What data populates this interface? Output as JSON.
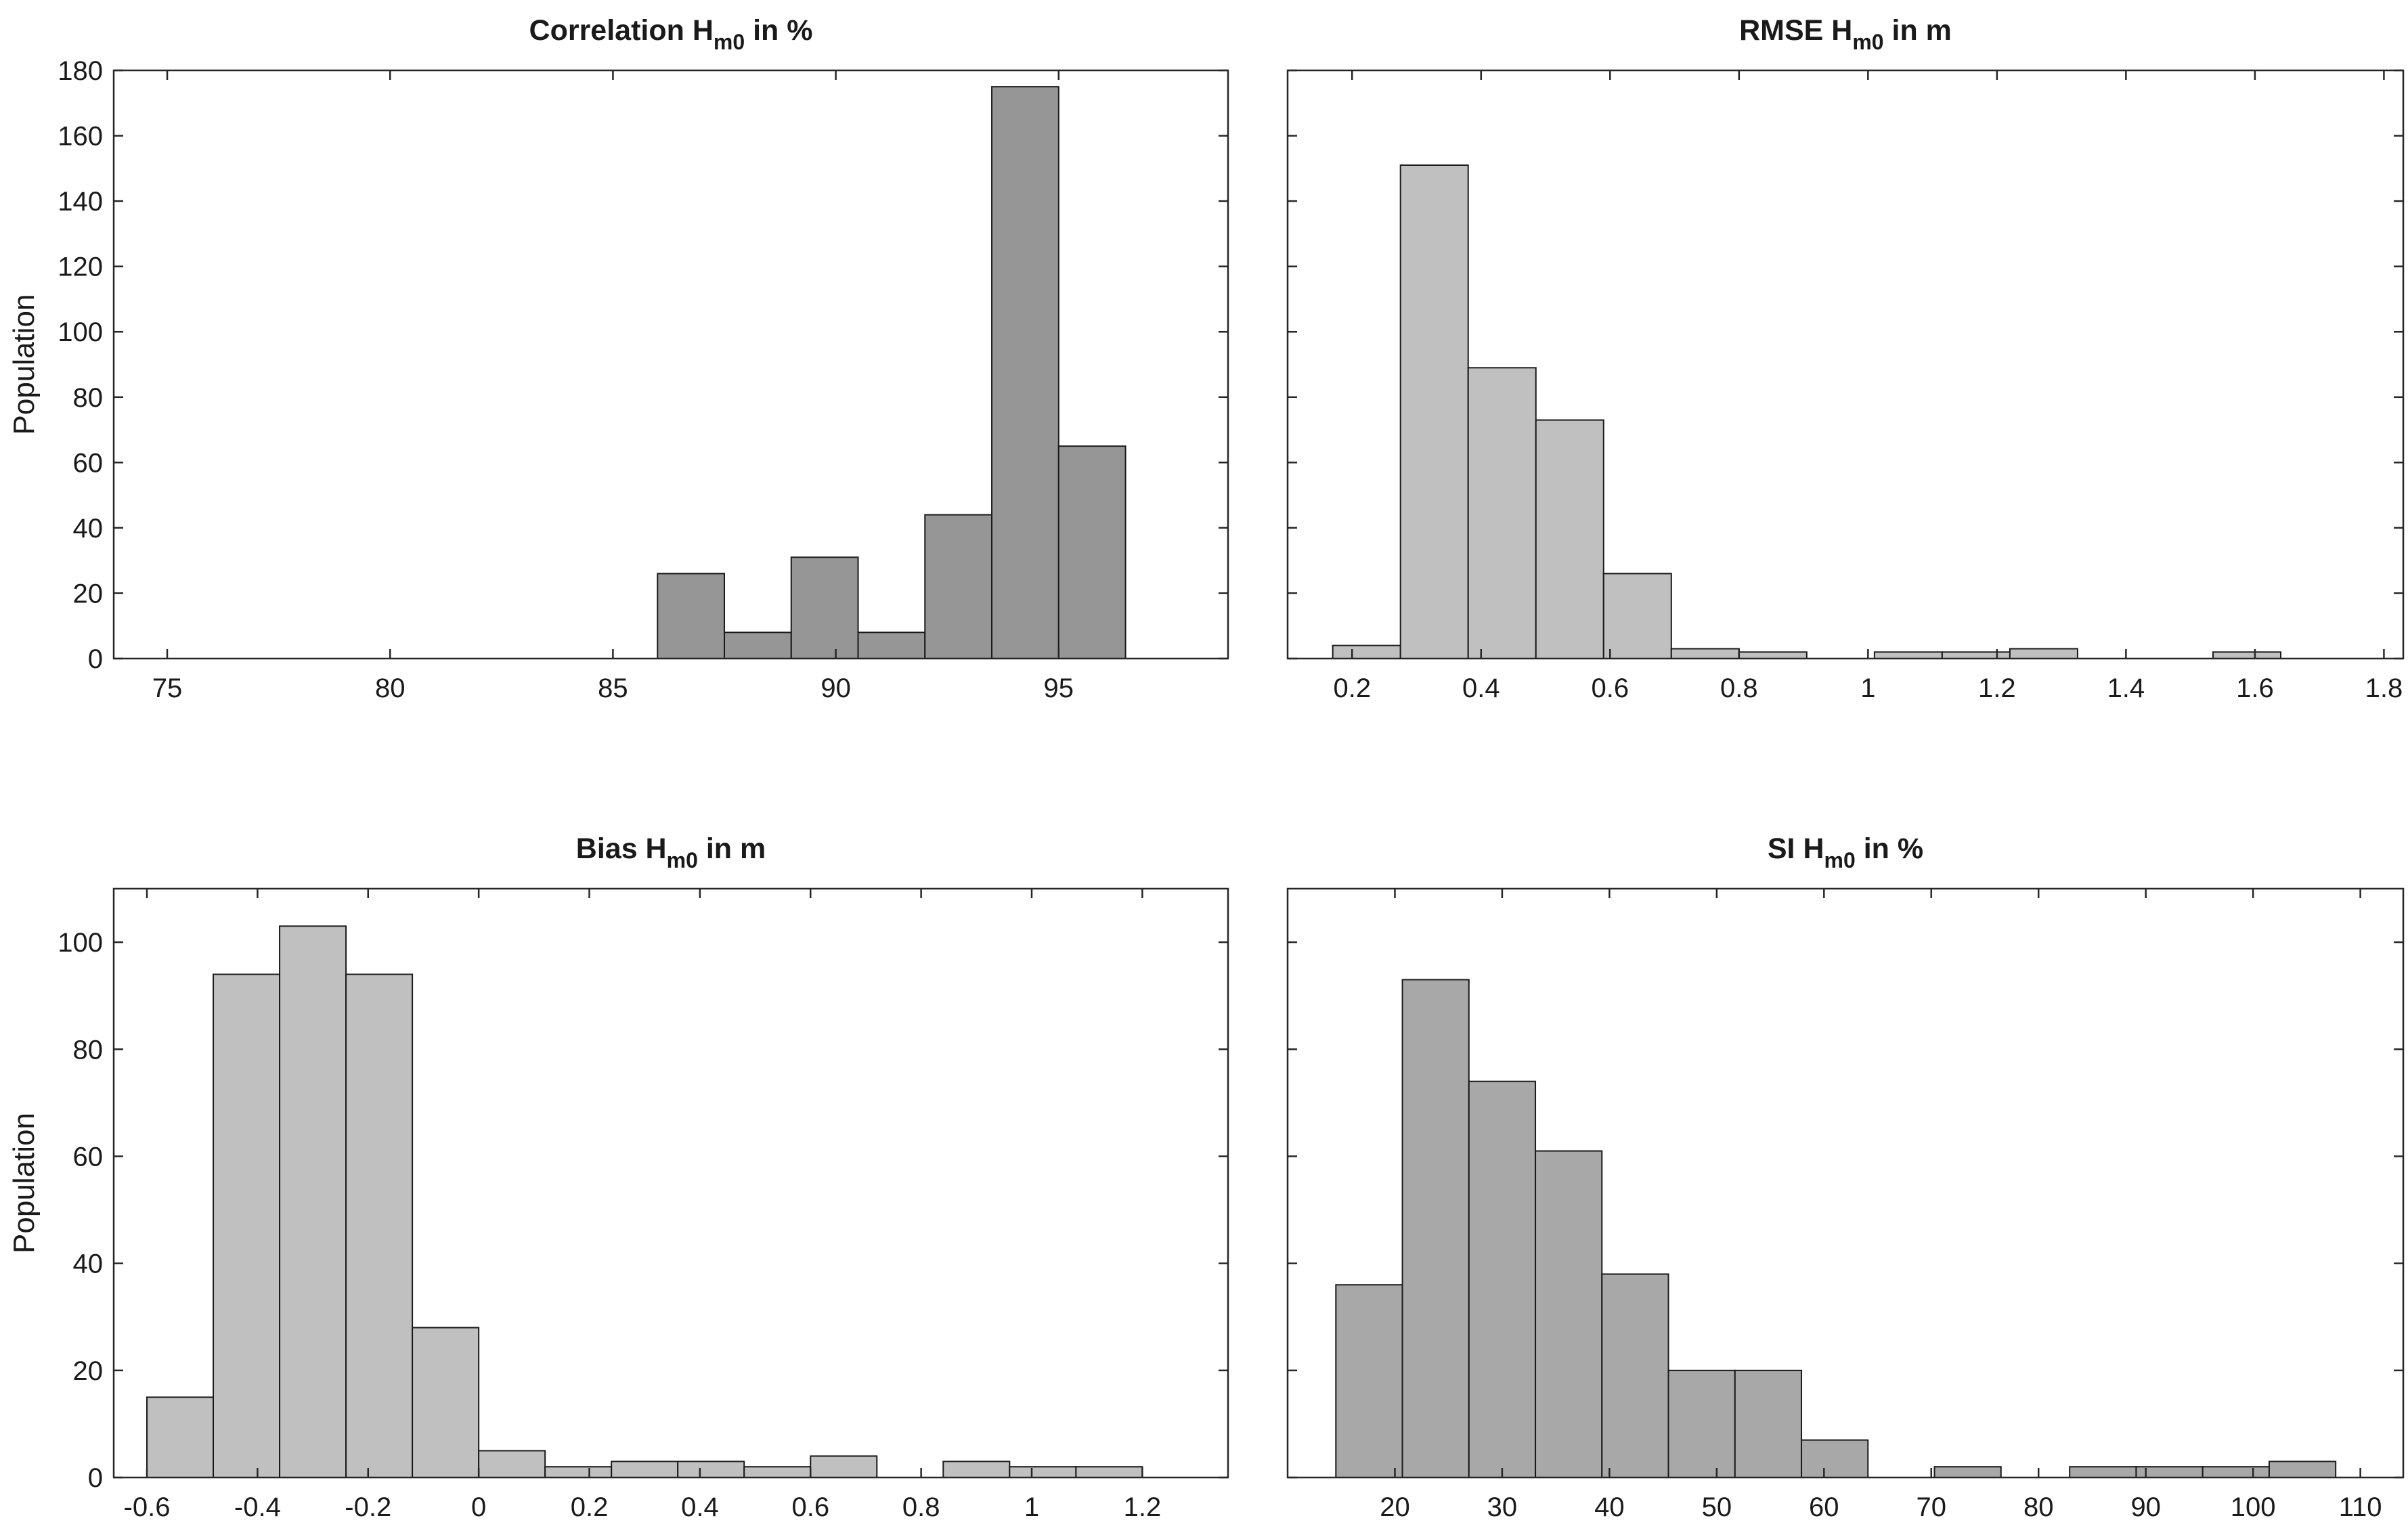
{
  "figure": {
    "ylabel": "Population"
  },
  "chart_data": [
    {
      "type": "bar",
      "panel": "top-left",
      "title_prefix": "Correlation H",
      "title_sub": "m0",
      "title_suffix": " in %",
      "color": "#969696",
      "xlim": [
        73.8,
        98.8
      ],
      "ylim": [
        0,
        180
      ],
      "xticks": [
        75,
        80,
        85,
        90,
        95
      ],
      "xtick_labels": [
        "75",
        "80",
        "85",
        "90",
        "95"
      ],
      "yticks": [
        0,
        20,
        40,
        60,
        80,
        100,
        120,
        140,
        160,
        180
      ],
      "ytick_labels": [
        "0",
        "20",
        "40",
        "60",
        "80",
        "100",
        "120",
        "140",
        "160",
        "180"
      ],
      "show_ylabel": true,
      "bins": [
        {
          "x0": 74.0,
          "x1": 75.5,
          "value": 0
        },
        {
          "x0": 77.0,
          "x1": 78.5,
          "value": 0
        },
        {
          "x0": 84.5,
          "x1": 86.0,
          "value": 0
        },
        {
          "x0": 86.0,
          "x1": 87.5,
          "value": 26
        },
        {
          "x0": 87.5,
          "x1": 89.0,
          "value": 8
        },
        {
          "x0": 89.0,
          "x1": 90.5,
          "value": 31
        },
        {
          "x0": 90.5,
          "x1": 92.0,
          "value": 8
        },
        {
          "x0": 92.0,
          "x1": 93.5,
          "value": 44
        },
        {
          "x0": 93.5,
          "x1": 95.0,
          "value": 175
        },
        {
          "x0": 95.0,
          "x1": 96.5,
          "value": 65
        }
      ]
    },
    {
      "type": "bar",
      "panel": "top-right",
      "title_prefix": "RMSE H",
      "title_sub": "m0",
      "title_suffix": " in m",
      "color": "#c0c0c0",
      "xlim": [
        0.1,
        1.83
      ],
      "ylim": [
        0,
        180
      ],
      "xticks": [
        0.2,
        0.4,
        0.6,
        0.8,
        1.0,
        1.2,
        1.4,
        1.6,
        1.8
      ],
      "xtick_labels": [
        "0.2",
        "0.4",
        "0.6",
        "0.8",
        "1",
        "1.2",
        "1.4",
        "1.6",
        "1.8"
      ],
      "yticks": [
        0,
        20,
        40,
        60,
        80,
        100,
        120,
        140,
        160,
        180
      ],
      "ytick_labels": [],
      "show_ylabel": false,
      "bins": [
        {
          "x0": 0.17,
          "x1": 0.275,
          "value": 4
        },
        {
          "x0": 0.275,
          "x1": 0.38,
          "value": 151
        },
        {
          "x0": 0.38,
          "x1": 0.485,
          "value": 89
        },
        {
          "x0": 0.485,
          "x1": 0.59,
          "value": 73
        },
        {
          "x0": 0.59,
          "x1": 0.695,
          "value": 26
        },
        {
          "x0": 0.695,
          "x1": 0.8,
          "value": 3
        },
        {
          "x0": 0.8,
          "x1": 0.905,
          "value": 2
        },
        {
          "x0": 0.905,
          "x1": 1.01,
          "value": 0
        },
        {
          "x0": 1.01,
          "x1": 1.115,
          "value": 2
        },
        {
          "x0": 1.115,
          "x1": 1.22,
          "value": 2
        },
        {
          "x0": 1.22,
          "x1": 1.325,
          "value": 3
        },
        {
          "x0": 1.43,
          "x1": 1.535,
          "value": 0
        },
        {
          "x0": 1.535,
          "x1": 1.64,
          "value": 2
        },
        {
          "x0": 1.64,
          "x1": 1.745,
          "value": 0
        }
      ]
    },
    {
      "type": "bar",
      "panel": "bottom-left",
      "title_prefix": "Bias H",
      "title_sub": "m0",
      "title_suffix": " in m",
      "color": "#c0c0c0",
      "xlim": [
        -0.66,
        1.355
      ],
      "ylim": [
        0,
        110
      ],
      "xticks": [
        -0.6,
        -0.4,
        -0.2,
        0,
        0.2,
        0.4,
        0.6,
        0.8,
        1.0,
        1.2
      ],
      "xtick_labels": [
        "-0.6",
        "-0.4",
        "-0.2",
        "0",
        "0.2",
        "0.4",
        "0.6",
        "0.8",
        "1",
        "1.2"
      ],
      "yticks": [
        0,
        20,
        40,
        60,
        80,
        100
      ],
      "ytick_labels": [
        "0",
        "20",
        "40",
        "60",
        "80",
        "100"
      ],
      "show_ylabel": true,
      "bins": [
        {
          "x0": -0.6,
          "x1": -0.48,
          "value": 15
        },
        {
          "x0": -0.48,
          "x1": -0.36,
          "value": 94
        },
        {
          "x0": -0.36,
          "x1": -0.24,
          "value": 103
        },
        {
          "x0": -0.24,
          "x1": -0.12,
          "value": 94
        },
        {
          "x0": -0.12,
          "x1": 0.0,
          "value": 28
        },
        {
          "x0": 0.0,
          "x1": 0.12,
          "value": 5
        },
        {
          "x0": 0.12,
          "x1": 0.24,
          "value": 2
        },
        {
          "x0": 0.24,
          "x1": 0.36,
          "value": 3
        },
        {
          "x0": 0.36,
          "x1": 0.48,
          "value": 3
        },
        {
          "x0": 0.48,
          "x1": 0.6,
          "value": 2
        },
        {
          "x0": 0.6,
          "x1": 0.72,
          "value": 4
        },
        {
          "x0": 0.84,
          "x1": 0.96,
          "value": 3
        },
        {
          "x0": 0.96,
          "x1": 1.08,
          "value": 2
        },
        {
          "x0": 1.08,
          "x1": 1.2,
          "value": 2
        }
      ]
    },
    {
      "type": "bar",
      "panel": "bottom-right",
      "title_prefix": "SI H",
      "title_sub": "m0",
      "title_suffix": " in %",
      "color": "#a8a8a8",
      "xlim": [
        10,
        114
      ],
      "ylim": [
        0,
        110
      ],
      "xticks": [
        20,
        30,
        40,
        50,
        60,
        70,
        80,
        90,
        100,
        110
      ],
      "xtick_labels": [
        "20",
        "30",
        "40",
        "50",
        "60",
        "70",
        "80",
        "90",
        "100",
        "110"
      ],
      "yticks": [
        0,
        20,
        40,
        60,
        80,
        100
      ],
      "ytick_labels": [],
      "show_ylabel": false,
      "bins": [
        {
          "x0": 14.5,
          "x1": 20.7,
          "value": 36
        },
        {
          "x0": 20.7,
          "x1": 26.9,
          "value": 93
        },
        {
          "x0": 26.9,
          "x1": 33.1,
          "value": 74
        },
        {
          "x0": 33.1,
          "x1": 39.3,
          "value": 61
        },
        {
          "x0": 39.3,
          "x1": 45.5,
          "value": 38
        },
        {
          "x0": 45.5,
          "x1": 51.7,
          "value": 20
        },
        {
          "x0": 51.7,
          "x1": 57.9,
          "value": 20
        },
        {
          "x0": 57.9,
          "x1": 64.1,
          "value": 7
        },
        {
          "x0": 70.3,
          "x1": 76.5,
          "value": 2
        },
        {
          "x0": 82.9,
          "x1": 89.1,
          "value": 2
        },
        {
          "x0": 89.1,
          "x1": 95.3,
          "value": 2
        },
        {
          "x0": 95.3,
          "x1": 101.5,
          "value": 2
        },
        {
          "x0": 101.5,
          "x1": 107.7,
          "value": 3
        }
      ]
    }
  ]
}
